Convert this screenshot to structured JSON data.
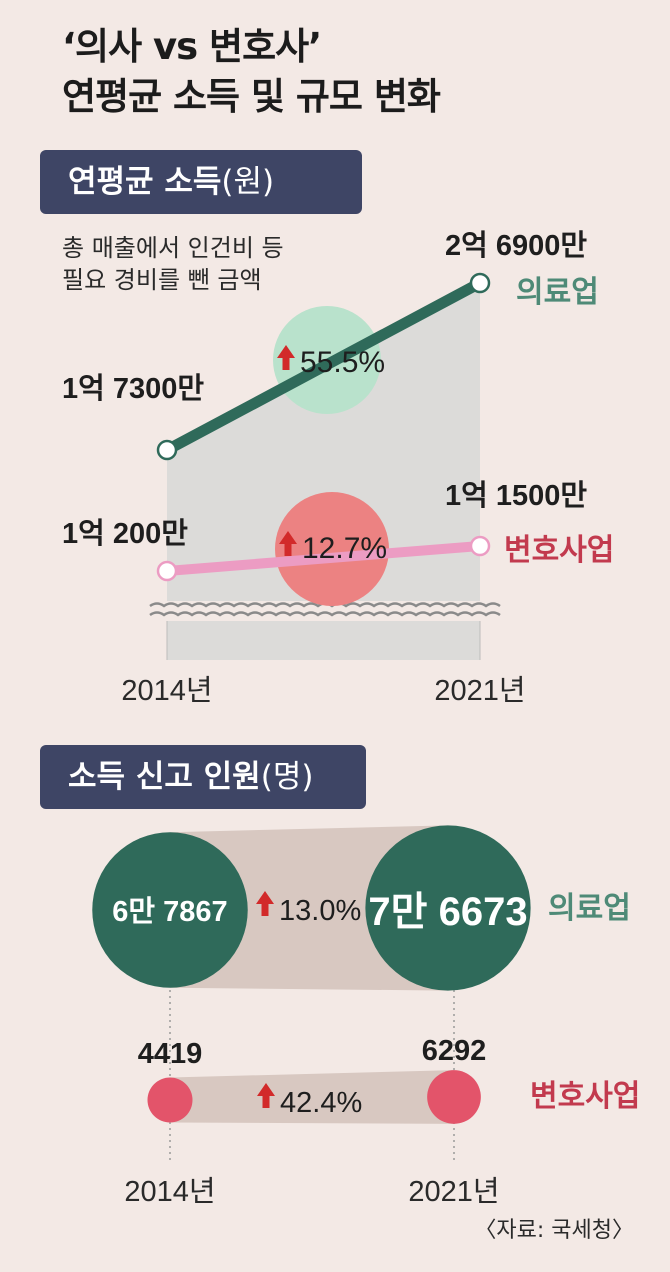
{
  "title": {
    "line1": "‘의사 vs 변호사’",
    "line2": "연평균 소득 및 규모 변화"
  },
  "income_section": {
    "label": "연평균 소득",
    "unit": "(원)",
    "note_line1": "총 매출에서 인건비 등",
    "note_line2": "필요 경비를 뺀 금액"
  },
  "people_section": {
    "label": "소득 신고 인원",
    "unit": "(명)"
  },
  "source": "〈자료: 국세청〉",
  "colors": {
    "medical_line": "#2f6a5a",
    "medical_label": "#4e8a77",
    "medical_growth_bubble": "#b9e2cc",
    "lawyer_line": "#ec9cc3",
    "lawyer_label": "#c23a4e",
    "lawyer_growth_bubble": "#ec8282",
    "lawyer_count_dot": "#e3546a",
    "medical_count_circle": "#2f6a5a",
    "band": "#d8c8c1",
    "area": "#dcdbd9",
    "arrow": "#d22a2a",
    "banner": "#3e4565"
  },
  "icons": {
    "increase": "up-arrow-icon",
    "axis_break": "axis-break-icon"
  },
  "chart_data": [
    {
      "type": "line",
      "title": "연평균 소득",
      "unit": "원",
      "x": [
        "2014년",
        "2021년"
      ],
      "series": [
        {
          "name": "의료업",
          "values": [
            173000000,
            269000000
          ],
          "labels": [
            "1억 7300만",
            "2억 6900만"
          ],
          "growth": "55.5%"
        },
        {
          "name": "변호사업",
          "values": [
            102000000,
            115000000
          ],
          "labels": [
            "1억 200만",
            "1억 1500만"
          ],
          "growth": "12.7%"
        }
      ],
      "axis_break": true
    },
    {
      "type": "scatter",
      "title": "소득 신고 인원",
      "unit": "명",
      "x": [
        "2014년",
        "2021년"
      ],
      "series": [
        {
          "name": "의료업",
          "values": [
            67867,
            76673
          ],
          "labels": [
            "6만 7867",
            "7만 6673"
          ],
          "growth": "13.0%"
        },
        {
          "name": "변호사업",
          "values": [
            4419,
            6292
          ],
          "labels": [
            "4419",
            "6292"
          ],
          "growth": "42.4%"
        }
      ]
    }
  ]
}
